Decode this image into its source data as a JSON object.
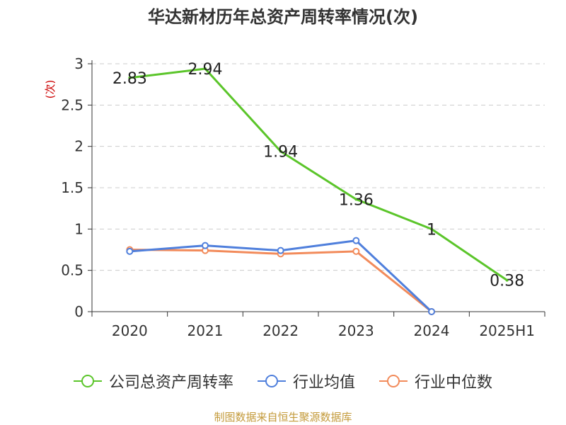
{
  "chart_data": {
    "type": "line",
    "title": "华达新材历年总资产周转率情况(次)",
    "ylabel": "(次)",
    "xlabel": "",
    "categories": [
      "2020",
      "2021",
      "2022",
      "2023",
      "2024",
      "2025H1"
    ],
    "ylim": [
      0,
      3
    ],
    "yticks": [
      "0",
      "0.5",
      "1",
      "1.5",
      "2",
      "2.5",
      "3"
    ],
    "grid": true,
    "legend_position": "bottom",
    "series": [
      {
        "name": "公司总资产周转率",
        "color": "#5bc52a",
        "values": [
          2.83,
          2.94,
          1.94,
          1.36,
          1,
          0.38
        ],
        "labels": [
          "2.83",
          "2.94",
          "1.94",
          "1.36",
          "1",
          "0.38"
        ]
      },
      {
        "name": "行业均值",
        "color": "#4f7fdc",
        "values": [
          0.73,
          0.8,
          0.74,
          0.86,
          0.0,
          null
        ]
      },
      {
        "name": "行业中位数",
        "color": "#f28b5b",
        "values": [
          0.75,
          0.74,
          0.7,
          0.73,
          0.0,
          null
        ]
      }
    ]
  },
  "source_note": "制图数据来自恒生聚源数据库",
  "colors": {
    "axis": "#333333",
    "grid": "#cccccc",
    "ylabel": "#cc0000"
  }
}
